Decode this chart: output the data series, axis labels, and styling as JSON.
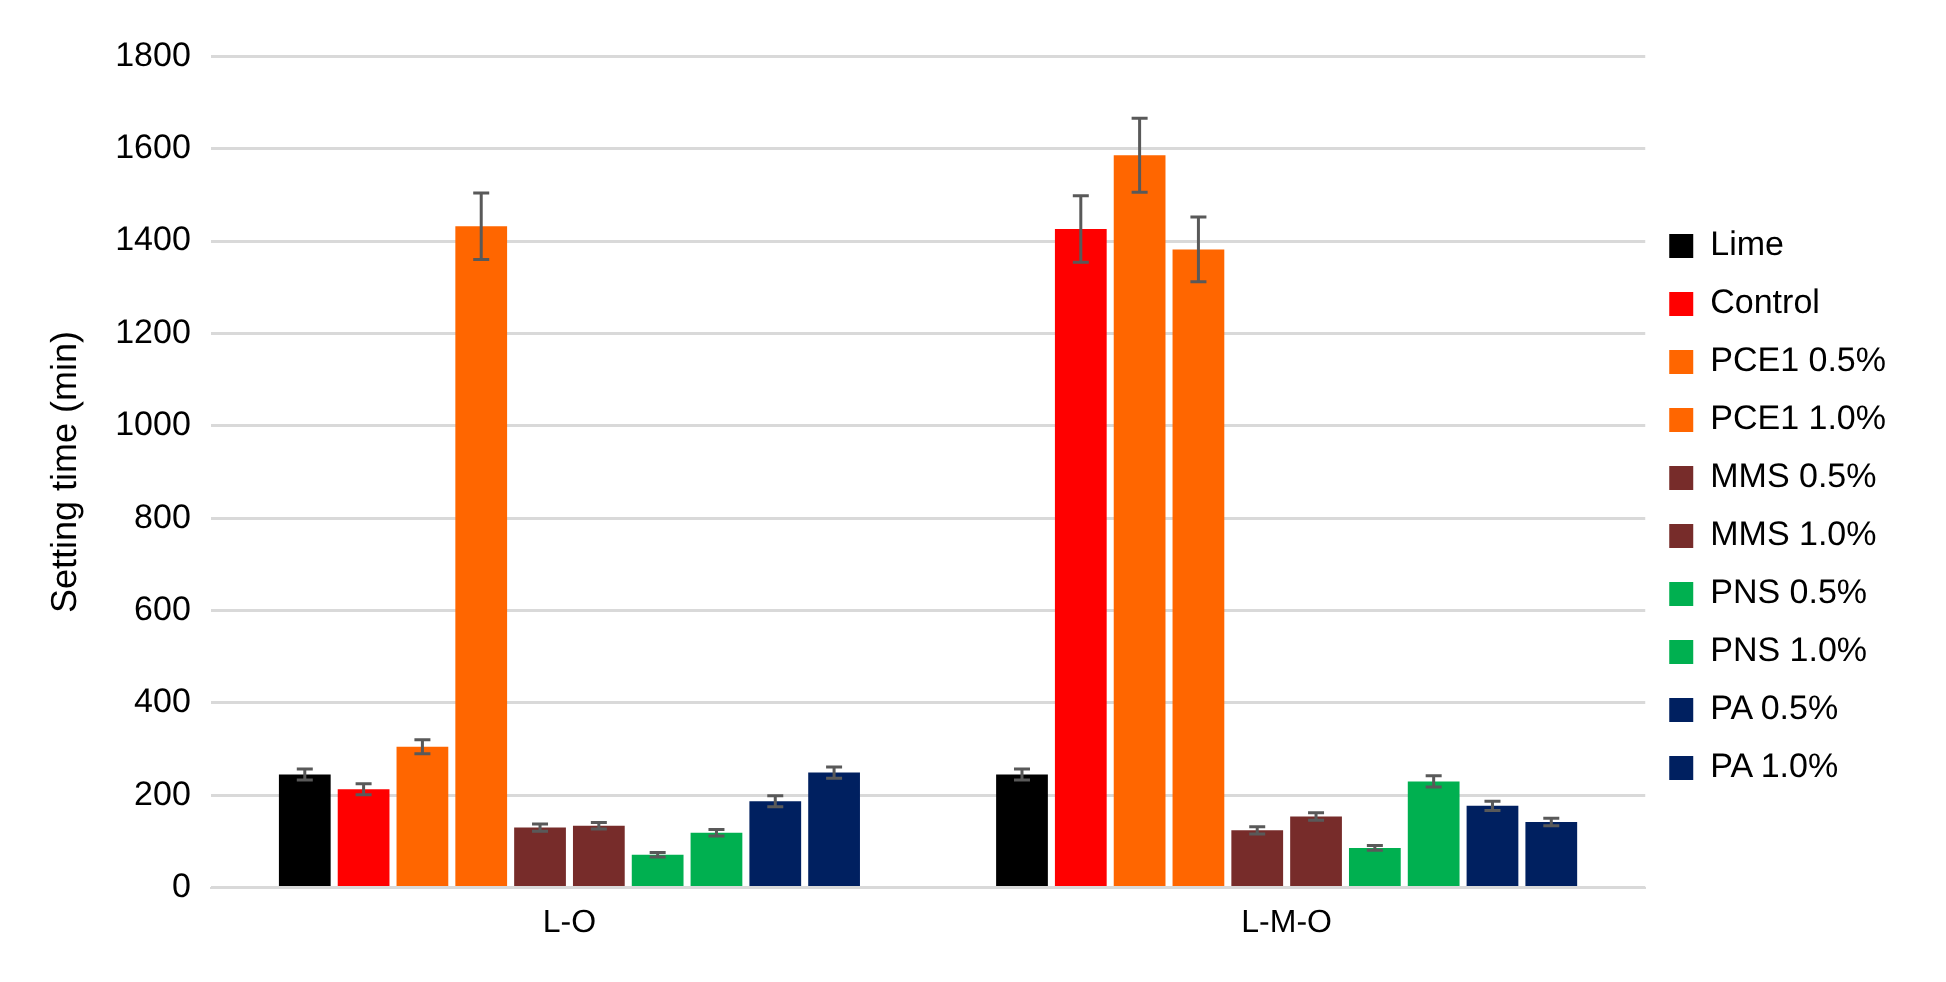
{
  "chart_data": {
    "type": "bar",
    "ylabel": "Setting time (min)",
    "categories": [
      "L-O",
      "L-M-O"
    ],
    "ylim": [
      0,
      1800
    ],
    "yticks": [
      0,
      200,
      400,
      600,
      800,
      1000,
      1200,
      1400,
      1600,
      1800
    ],
    "grid": "y",
    "legend": "right",
    "series": [
      {
        "name": "Lime",
        "color": "#000000",
        "values": [
          245,
          245
        ],
        "errors": [
          12,
          12
        ]
      },
      {
        "name": "Control",
        "color": "#ff0000",
        "values": [
          213,
          1426
        ],
        "errors": [
          12,
          72
        ]
      },
      {
        "name": "PCE1 0.5%",
        "color": "#ff6600",
        "values": [
          305,
          1586
        ],
        "errors": [
          15,
          80
        ]
      },
      {
        "name": "PCE1 1.0%",
        "color": "#ff6600",
        "values": [
          1432,
          1382
        ],
        "errors": [
          72,
          70
        ]
      },
      {
        "name": "MMS 0.5%",
        "color": "#772c2a",
        "values": [
          130,
          124
        ],
        "errors": [
          8,
          8
        ]
      },
      {
        "name": "MMS 1.0%",
        "color": "#772c2a",
        "values": [
          134,
          154
        ],
        "errors": [
          7,
          8
        ]
      },
      {
        "name": "PNS 0.5%",
        "color": "#00b050",
        "values": [
          71,
          86
        ],
        "errors": [
          5,
          5
        ]
      },
      {
        "name": "PNS 1.0%",
        "color": "#00b050",
        "values": [
          119,
          230
        ],
        "errors": [
          7,
          12
        ]
      },
      {
        "name": "PA 0.5%",
        "color": "#002060",
        "values": [
          187,
          177
        ],
        "errors": [
          12,
          10
        ]
      },
      {
        "name": "PA 1.0%",
        "color": "#002060",
        "values": [
          249,
          142
        ],
        "errors": [
          12,
          8
        ]
      }
    ]
  }
}
